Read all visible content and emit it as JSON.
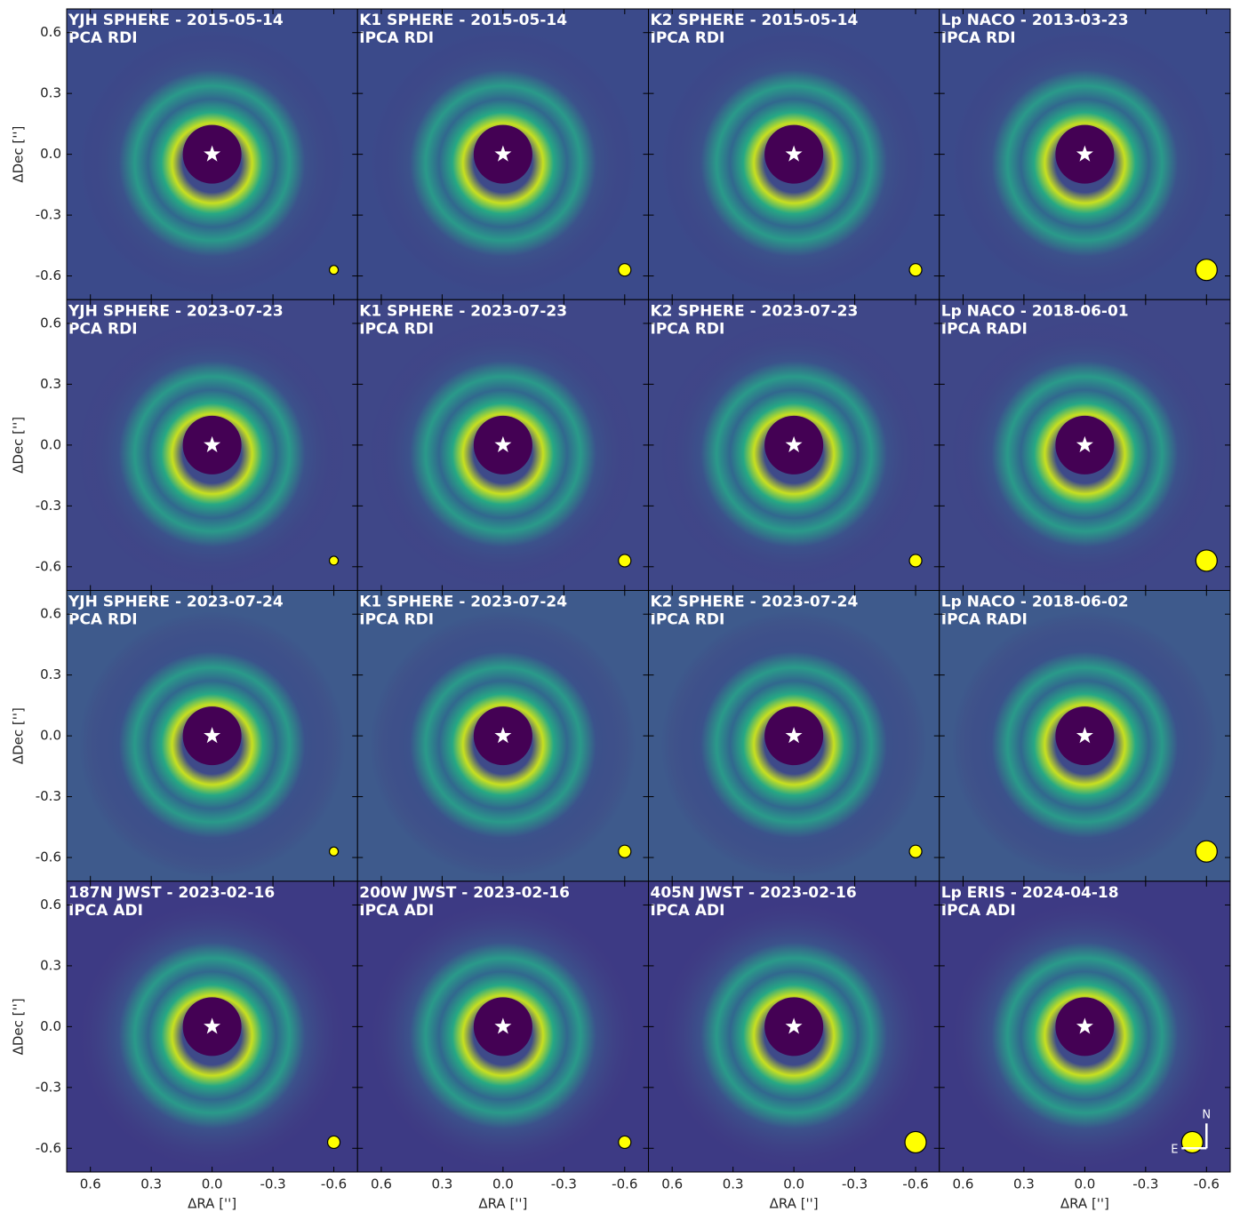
{
  "figure": {
    "xlabel": "ΔRA ['']",
    "ylabel": "ΔDec ['']",
    "xlim": [
      0.717,
      -0.717
    ],
    "ylim": [
      -0.717,
      0.717
    ],
    "xticks": [
      {
        "value": 0.6,
        "label": "0.6"
      },
      {
        "value": 0.3,
        "label": "0.3"
      },
      {
        "value": 0,
        "label": "0.0"
      },
      {
        "value": -0.3,
        "label": "-0.3"
      },
      {
        "value": -0.6,
        "label": "-0.6"
      }
    ],
    "yticks": [
      {
        "value": 0.6,
        "label": "0.6"
      },
      {
        "value": 0.3,
        "label": "0.3"
      },
      {
        "value": 0,
        "label": "0.0"
      },
      {
        "value": -0.3,
        "label": "-0.3"
      },
      {
        "value": -0.6,
        "label": "-0.6"
      }
    ],
    "panels": [
      {
        "title": "YJH SPHERE - 2015-05-14",
        "subtitle": "PCA RDI"
      },
      {
        "title": "K1 SPHERE - 2015-05-14",
        "subtitle": "IPCA RDI"
      },
      {
        "title": "K2 SPHERE - 2015-05-14",
        "subtitle": "IPCA RDI"
      },
      {
        "title": "Lp NACO - 2013-03-23",
        "subtitle": "IPCA RDI"
      },
      {
        "title": "YJH SPHERE - 2023-07-23",
        "subtitle": "PCA RDI"
      },
      {
        "title": "K1 SPHERE - 2023-07-23",
        "subtitle": "IPCA RDI"
      },
      {
        "title": "K2 SPHERE - 2023-07-23",
        "subtitle": "IPCA RDI"
      },
      {
        "title": "Lp NACO - 2018-06-01",
        "subtitle": "IPCA RADI"
      },
      {
        "title": "YJH SPHERE - 2023-07-24",
        "subtitle": "PCA RDI"
      },
      {
        "title": "K1 SPHERE - 2023-07-24",
        "subtitle": "IPCA RDI"
      },
      {
        "title": "K2 SPHERE - 2023-07-24",
        "subtitle": "IPCA RDI"
      },
      {
        "title": "Lp NACO - 2018-06-02",
        "subtitle": "IPCA RADI"
      },
      {
        "title": "187N JWST - 2023-02-16",
        "subtitle": "IPCA ADI"
      },
      {
        "title": "200W JWST - 2023-02-16",
        "subtitle": "IPCA ADI"
      },
      {
        "title": "405N JWST - 2023-02-16",
        "subtitle": "IPCA ADI"
      },
      {
        "title": "Lp ERIS - 2024-04-18",
        "subtitle": "IPCA ADI"
      }
    ],
    "compass": {
      "n": "N",
      "e": "E"
    }
  }
}
